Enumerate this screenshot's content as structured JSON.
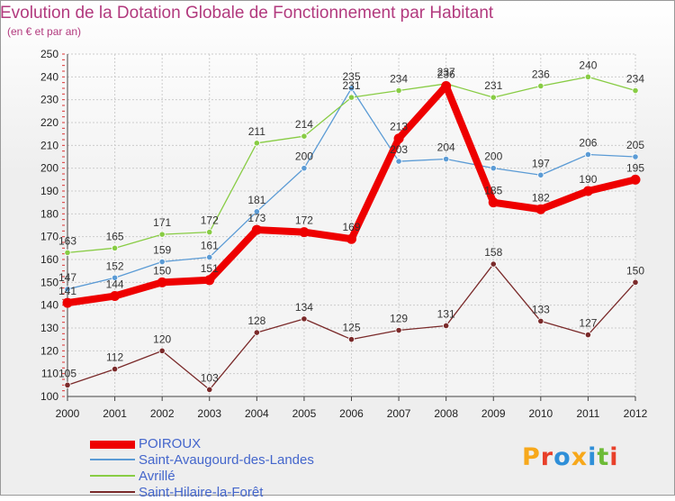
{
  "header": {
    "title": "Evolution de la Dotation Globale de Fonctionnement par Habitant",
    "subtitle": "(en € et par an)"
  },
  "logo": {
    "text": "Proxiti",
    "letters": [
      {
        "ch": "P",
        "color": "#f7a81b"
      },
      {
        "ch": "r",
        "color": "#e8402a"
      },
      {
        "ch": "o",
        "color": "#2f8fd8"
      },
      {
        "ch": "x",
        "color": "#f7a81b"
      },
      {
        "ch": "i",
        "color": "#2f8fd8"
      },
      {
        "ch": "t",
        "color": "#6dbb37"
      },
      {
        "ch": "i",
        "color": "#e8402a"
      }
    ]
  },
  "chart_data": {
    "type": "line",
    "title": "Evolution de la Dotation Globale de Fonctionnement par Habitant",
    "ylabel": "(en € et par an)",
    "xlabel": "",
    "x": [
      "2000",
      "2001",
      "2002",
      "2003",
      "2004",
      "2005",
      "2006",
      "2007",
      "2008",
      "2009",
      "2010",
      "2011",
      "2012"
    ],
    "ylim": [
      100,
      250
    ],
    "yticks": [
      100,
      110,
      120,
      130,
      140,
      150,
      160,
      170,
      180,
      190,
      200,
      210,
      220,
      230,
      240,
      250
    ],
    "grid": true,
    "legend": "bottom-left",
    "series": [
      {
        "name": "POIROUX",
        "color": "#ee0000",
        "values": [
          141,
          144,
          150,
          151,
          173,
          172,
          169,
          213,
          236,
          185,
          182,
          190,
          195
        ]
      },
      {
        "name": "Saint-Avaugourd-des-Landes",
        "color": "#5b9bd5",
        "values": [
          147,
          152,
          159,
          161,
          181,
          200,
          235,
          203,
          204,
          200,
          197,
          206,
          205
        ]
      },
      {
        "name": "Avrillé",
        "color": "#88cc44",
        "values": [
          163,
          165,
          171,
          172,
          211,
          214,
          231,
          234,
          237,
          231,
          236,
          240,
          234
        ]
      },
      {
        "name": "Saint-Hilaire-la-Forêt",
        "color": "#7a2a2a",
        "values": [
          105,
          112,
          120,
          103,
          128,
          134,
          125,
          129,
          131,
          158,
          133,
          127,
          150
        ]
      }
    ]
  }
}
